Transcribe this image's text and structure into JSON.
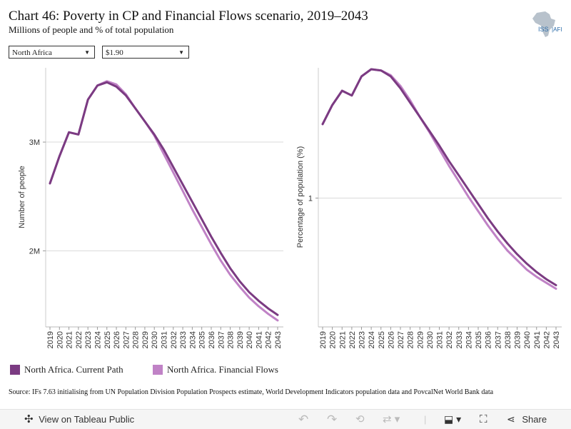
{
  "header": {
    "title": "Chart 46: Poverty in CP and Financial Flows scenario, 2019–2043",
    "subtitle": "Millions of people and % of total population",
    "logo_text": "ISS AFI"
  },
  "filters": {
    "region": "North Africa",
    "poverty_line": "$1.90"
  },
  "colors": {
    "current_path": "#7b3b82",
    "financial_flows": "#c082c6"
  },
  "legend": {
    "current_path": "North Africa. Current Path",
    "financial_flows": "North Africa. Financial Flows"
  },
  "source": "Source: IFs 7.63 initialising from UN Population Division Population Prospects estimate, World Development Indicators population data and PovcalNet World Bank data",
  "toolbar": {
    "view_label": "View on Tableau Public",
    "share_label": "Share"
  },
  "chart_data": [
    {
      "type": "line",
      "ylabel": "Number of people",
      "ytick_labels": [
        "3M",
        "2M"
      ],
      "yticks": [
        3.0,
        2.0
      ],
      "ylim": [
        1.3,
        3.67
      ],
      "x": [
        2019,
        2020,
        2021,
        2022,
        2023,
        2024,
        2025,
        2026,
        2027,
        2028,
        2029,
        2030,
        2031,
        2032,
        2033,
        2034,
        2035,
        2036,
        2037,
        2038,
        2039,
        2040,
        2041,
        2042,
        2043
      ],
      "grid": true,
      "series": [
        {
          "name": "North Africa. Current Path",
          "values": [
            2.62,
            2.87,
            3.09,
            3.07,
            3.39,
            3.52,
            3.55,
            3.51,
            3.43,
            3.31,
            3.19,
            3.07,
            2.93,
            2.77,
            2.61,
            2.45,
            2.29,
            2.13,
            1.98,
            1.84,
            1.72,
            1.62,
            1.54,
            1.47,
            1.41
          ]
        },
        {
          "name": "North Africa. Financial Flows",
          "values": [
            2.62,
            2.87,
            3.09,
            3.07,
            3.39,
            3.52,
            3.56,
            3.53,
            3.44,
            3.31,
            3.19,
            3.06,
            2.89,
            2.72,
            2.55,
            2.38,
            2.22,
            2.06,
            1.91,
            1.78,
            1.67,
            1.57,
            1.49,
            1.42,
            1.36
          ]
        }
      ]
    },
    {
      "type": "line",
      "ylabel": "Percentage of population (%)",
      "ytick_labels": [
        "1"
      ],
      "yticks": [
        1.0
      ],
      "ylim": [
        0.46,
        1.54
      ],
      "x": [
        2019,
        2020,
        2021,
        2022,
        2023,
        2024,
        2025,
        2026,
        2027,
        2028,
        2029,
        2030,
        2031,
        2032,
        2033,
        2034,
        2035,
        2036,
        2037,
        2038,
        2039,
        2040,
        2041,
        2042,
        2043
      ],
      "grid": true,
      "series": [
        {
          "name": "North Africa. Current Path",
          "values": [
            1.31,
            1.39,
            1.45,
            1.43,
            1.51,
            1.54,
            1.535,
            1.51,
            1.46,
            1.4,
            1.34,
            1.28,
            1.22,
            1.155,
            1.095,
            1.035,
            0.975,
            0.915,
            0.86,
            0.81,
            0.765,
            0.725,
            0.69,
            0.66,
            0.635
          ]
        },
        {
          "name": "North Africa. Financial Flows",
          "values": [
            1.31,
            1.39,
            1.45,
            1.43,
            1.51,
            1.54,
            1.535,
            1.515,
            1.47,
            1.41,
            1.34,
            1.275,
            1.205,
            1.135,
            1.07,
            1.005,
            0.945,
            0.885,
            0.83,
            0.78,
            0.74,
            0.7,
            0.67,
            0.645,
            0.62
          ]
        }
      ]
    }
  ]
}
